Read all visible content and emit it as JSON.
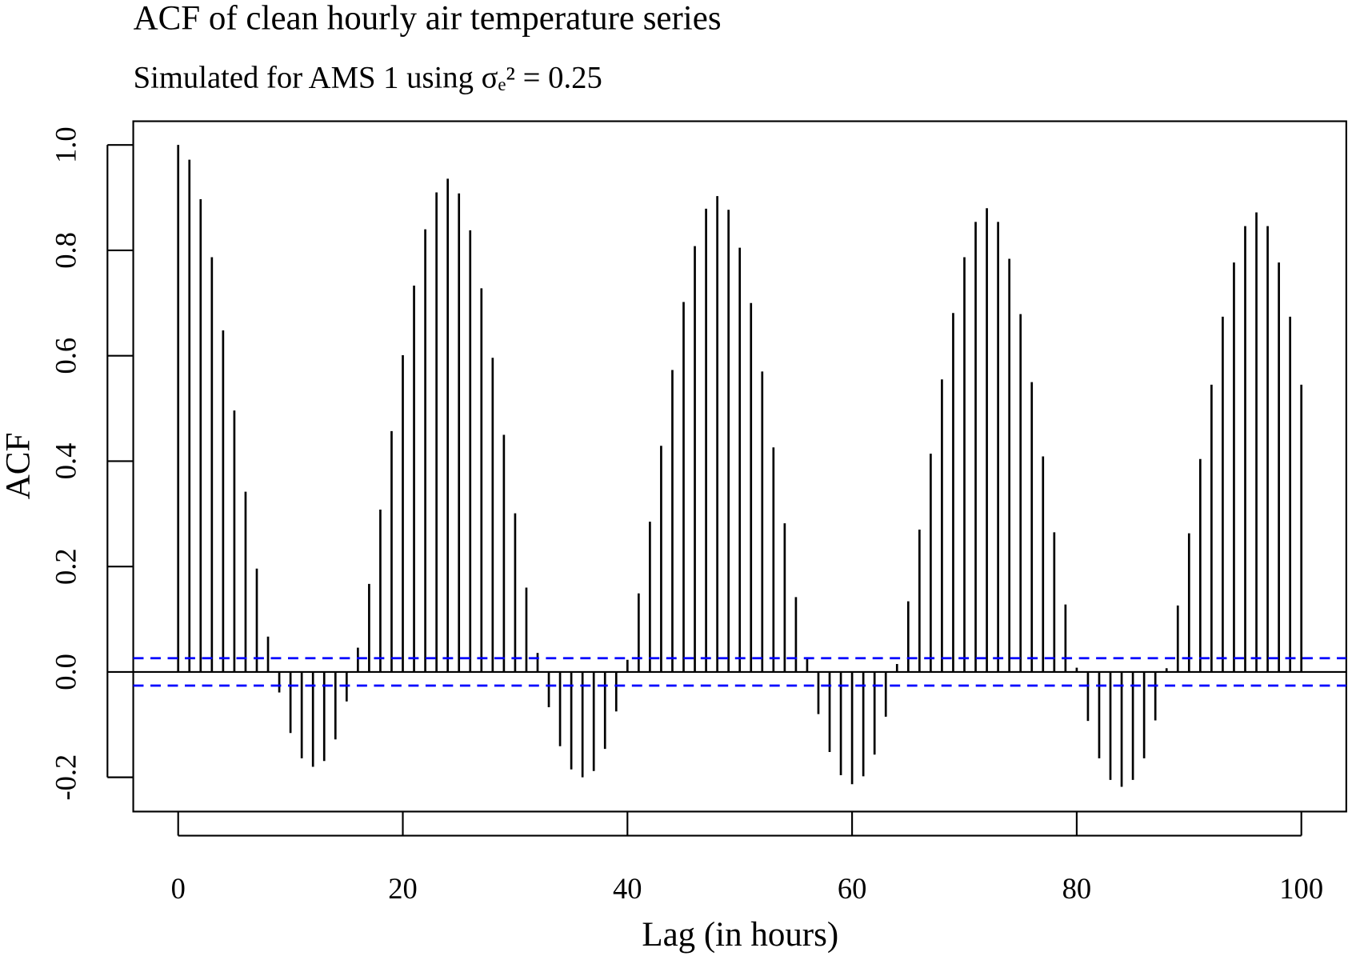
{
  "chart_data": {
    "type": "bar",
    "subtype": "acf-stem",
    "title": "ACF of clean hourly air temperature series",
    "subtitle": "Simulated for AMS 1 using σₑ² = 0.25",
    "xlabel": "Lag (in hours)",
    "ylabel": "ACF",
    "xlim": [
      -4,
      104
    ],
    "ylim": [
      -0.265,
      1.045
    ],
    "xticks": [
      "0",
      "20",
      "40",
      "60",
      "80",
      "100"
    ],
    "xtick_values": [
      0,
      20,
      40,
      60,
      80,
      100
    ],
    "yticks": [
      "-0.2",
      "0.0",
      "0.2",
      "0.4",
      "0.6",
      "0.8",
      "1.0"
    ],
    "ytick_values": [
      -0.2,
      0.0,
      0.2,
      0.4,
      0.6,
      0.8,
      1.0
    ],
    "confidence_band": 0.026,
    "colors": {
      "stem": "#000000",
      "band": "#0000ff"
    },
    "x_start": 0,
    "values": [
      1.0,
      0.972,
      0.897,
      0.787,
      0.648,
      0.496,
      0.342,
      0.196,
      0.067,
      -0.039,
      -0.116,
      -0.164,
      -0.18,
      -0.169,
      -0.128,
      -0.056,
      0.046,
      0.167,
      0.308,
      0.457,
      0.601,
      0.733,
      0.84,
      0.91,
      0.936,
      0.908,
      0.838,
      0.728,
      0.596,
      0.45,
      0.301,
      0.16,
      0.036,
      -0.067,
      -0.141,
      -0.185,
      -0.2,
      -0.188,
      -0.146,
      -0.075,
      0.023,
      0.149,
      0.285,
      0.429,
      0.573,
      0.702,
      0.808,
      0.879,
      0.903,
      0.877,
      0.805,
      0.7,
      0.57,
      0.426,
      0.282,
      0.142,
      0.025,
      -0.08,
      -0.152,
      -0.196,
      -0.213,
      -0.198,
      -0.157,
      -0.085,
      0.015,
      0.134,
      0.27,
      0.414,
      0.555,
      0.681,
      0.787,
      0.854,
      0.88,
      0.854,
      0.784,
      0.679,
      0.55,
      0.409,
      0.265,
      0.128,
      0.008,
      -0.093,
      -0.164,
      -0.205,
      -0.218,
      -0.205,
      -0.164,
      -0.092,
      0.007,
      0.126,
      0.263,
      0.404,
      0.545,
      0.674,
      0.777,
      0.846,
      0.872,
      0.846,
      0.777,
      0.674,
      0.545
    ]
  }
}
